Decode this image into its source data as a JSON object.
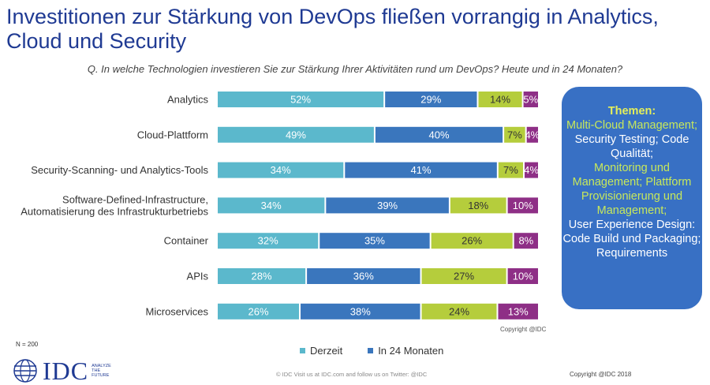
{
  "title": "Investitionen zur Stärkung von DevOps fließen vorrangig in Analytics, Cloud und Security",
  "question": "Q. In welche Technologien investieren Sie zur Stärkung Ihrer Aktivitäten rund um DevOps? Heute und in 24 Monaten?",
  "chart_data": {
    "type": "bar",
    "orientation": "horizontal",
    "stacked": true,
    "categories": [
      "Analytics",
      "Cloud-Plattform",
      "Security-Scanning- und Analytics-Tools",
      "Software-Defined-Infrastructure, Automatisierung des Infrastrukturbetriebs",
      "Container",
      "APIs",
      "Microservices"
    ],
    "series": [
      {
        "name": "Derzeit",
        "color": "#5bb8cc",
        "values": [
          52,
          49,
          34,
          34,
          32,
          28,
          26
        ]
      },
      {
        "name": "In 24 Monaten",
        "color": "#3a76bd",
        "values": [
          29,
          40,
          41,
          39,
          35,
          36,
          38
        ]
      },
      {
        "name": "",
        "color": "#b5cd3c",
        "values": [
          14,
          7,
          7,
          18,
          26,
          27,
          24
        ]
      },
      {
        "name": "",
        "color": "#8e2f86",
        "values": [
          5,
          4,
          4,
          10,
          8,
          10,
          13
        ]
      }
    ],
    "value_suffix": "%",
    "legend_placement": "bottom",
    "grid": false
  },
  "themes": {
    "header": "Themen:",
    "lines": [
      {
        "text": "Multi-Cloud Management;",
        "style": "green"
      },
      {
        "text": "Security Testing; Code Qualität;",
        "style": "white"
      },
      {
        "text": "Monitoring und Management; Plattform Provisionierung und Management;",
        "style": "green"
      },
      {
        "text": "User Experience Design: Code Build und Packaging; Requirements",
        "style": "white"
      }
    ]
  },
  "chart_copyright": "Copyright @IDC",
  "sample_size": "N = 200",
  "legend": {
    "derzeit": "Derzeit",
    "in24": "In 24 Monaten"
  },
  "colors": {
    "derzeit": "#5bb8cc",
    "in24": "#3a76bd"
  },
  "footer": "© IDC   Visit us at IDC.com and follow us on Twitter: @IDC",
  "copyright": "Copyright @IDC 2018",
  "logo": {
    "name": "IDC",
    "tag1": "ANALYZE",
    "tag2": "THE",
    "tag3": "FUTURE"
  }
}
